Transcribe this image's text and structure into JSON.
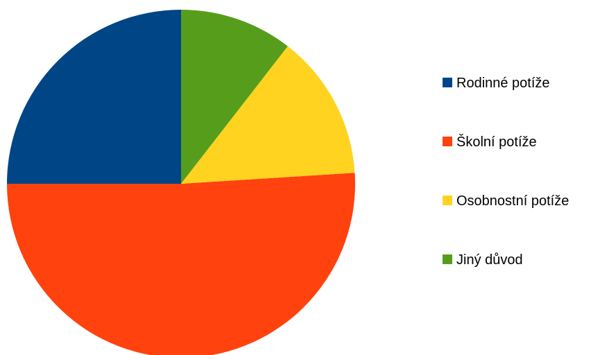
{
  "chart_data": {
    "type": "pie",
    "title": "",
    "categories": [
      "Rodinné potíže",
      "Školní potíže",
      "Osobnostní potíže",
      "Jiný důvod"
    ],
    "values": [
      25,
      51,
      13.5,
      10.5
    ],
    "colors": [
      "#004586",
      "#ff420e",
      "#ffd320",
      "#579d1c"
    ],
    "legend_position": "right",
    "start_angle_deg": 0,
    "direction": "counterclockwise"
  }
}
